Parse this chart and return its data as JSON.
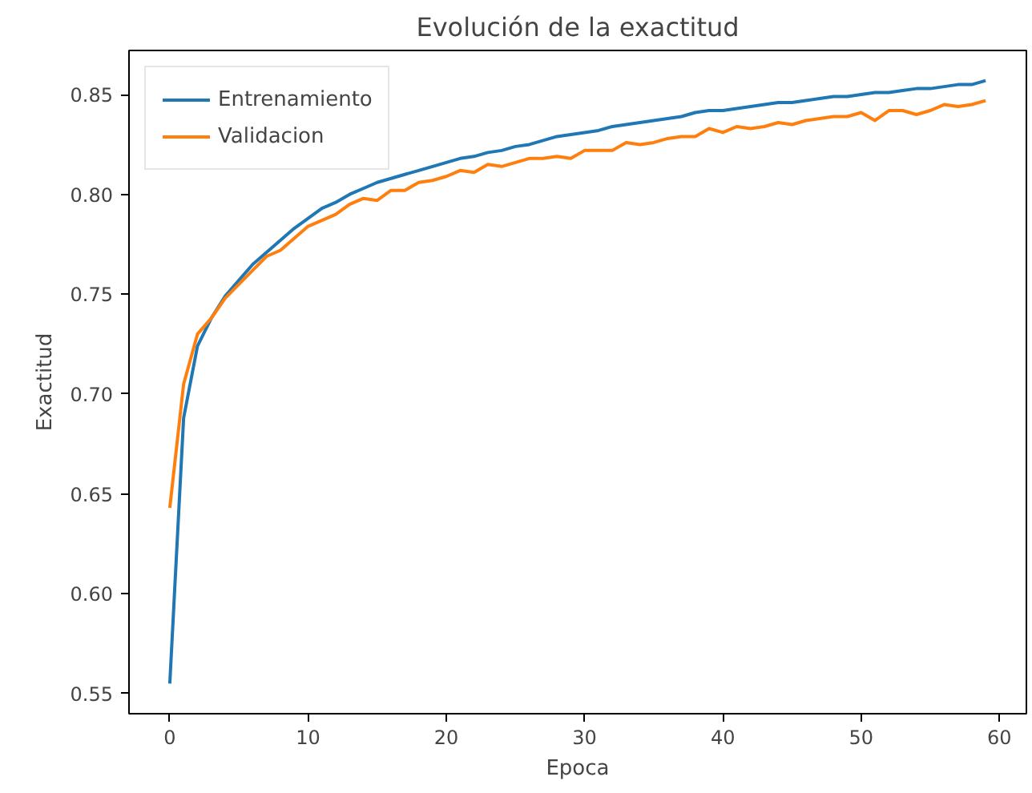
{
  "chart_data": {
    "type": "line",
    "title": "Evolución de la exactitud",
    "xlabel": "Epoca",
    "ylabel": "Exactitud",
    "x": [
      0,
      1,
      2,
      3,
      4,
      5,
      6,
      7,
      8,
      9,
      10,
      11,
      12,
      13,
      14,
      15,
      16,
      17,
      18,
      19,
      20,
      21,
      22,
      23,
      24,
      25,
      26,
      27,
      28,
      29,
      30,
      31,
      32,
      33,
      34,
      35,
      36,
      37,
      38,
      39,
      40,
      41,
      42,
      43,
      44,
      45,
      46,
      47,
      48,
      49,
      50,
      51,
      52,
      53,
      54,
      55,
      56,
      57,
      58,
      59
    ],
    "series": [
      {
        "name": "Entrenamiento",
        "color": "#1f77b4",
        "values": [
          0.555,
          0.688,
          0.724,
          0.738,
          0.749,
          0.757,
          0.765,
          0.771,
          0.777,
          0.783,
          0.788,
          0.793,
          0.796,
          0.8,
          0.803,
          0.806,
          0.808,
          0.81,
          0.812,
          0.814,
          0.816,
          0.818,
          0.819,
          0.821,
          0.822,
          0.824,
          0.825,
          0.827,
          0.829,
          0.83,
          0.831,
          0.832,
          0.834,
          0.835,
          0.836,
          0.837,
          0.838,
          0.839,
          0.841,
          0.842,
          0.842,
          0.843,
          0.844,
          0.845,
          0.846,
          0.846,
          0.847,
          0.848,
          0.849,
          0.849,
          0.85,
          0.851,
          0.851,
          0.852,
          0.853,
          0.853,
          0.854,
          0.855,
          0.855,
          0.857
        ]
      },
      {
        "name": "Validacion",
        "color": "#ff7f0e",
        "values": [
          0.643,
          0.705,
          0.73,
          0.738,
          0.748,
          0.755,
          0.762,
          0.769,
          0.772,
          0.778,
          0.784,
          0.787,
          0.79,
          0.795,
          0.798,
          0.797,
          0.802,
          0.802,
          0.806,
          0.807,
          0.809,
          0.812,
          0.811,
          0.815,
          0.814,
          0.816,
          0.818,
          0.818,
          0.819,
          0.818,
          0.822,
          0.822,
          0.822,
          0.826,
          0.825,
          0.826,
          0.828,
          0.829,
          0.829,
          0.833,
          0.831,
          0.834,
          0.833,
          0.834,
          0.836,
          0.835,
          0.837,
          0.838,
          0.839,
          0.839,
          0.841,
          0.837,
          0.842,
          0.842,
          0.84,
          0.842,
          0.845,
          0.844,
          0.845,
          0.847
        ]
      }
    ],
    "xlim": [
      -2.95,
      61.95
    ],
    "ylim": [
      0.5399,
      0.8721
    ],
    "xticks": [
      0,
      10,
      20,
      30,
      40,
      50,
      60
    ],
    "yticks": [
      {
        "value": 0.55,
        "label": "0.55"
      },
      {
        "value": 0.6,
        "label": "0.60"
      },
      {
        "value": 0.65,
        "label": "0.65"
      },
      {
        "value": 0.7,
        "label": "0.70"
      },
      {
        "value": 0.75,
        "label": "0.75"
      },
      {
        "value": 0.8,
        "label": "0.80"
      },
      {
        "value": 0.85,
        "label": "0.85"
      }
    ],
    "legend": "top left",
    "grid": false
  }
}
